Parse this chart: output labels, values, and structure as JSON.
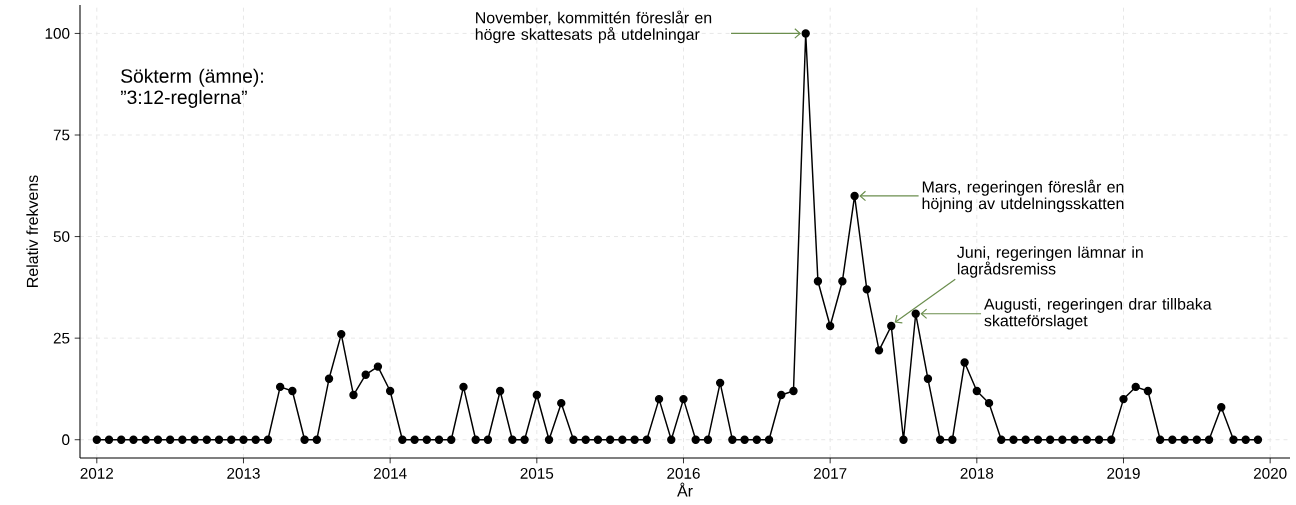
{
  "chart_data": {
    "type": "line",
    "xlabel": "År",
    "ylabel": "Relativ frekvens",
    "x": [
      "2012-01",
      "2012-02",
      "2012-03",
      "2012-04",
      "2012-05",
      "2012-06",
      "2012-07",
      "2012-08",
      "2012-09",
      "2012-10",
      "2012-11",
      "2012-12",
      "2013-01",
      "2013-02",
      "2013-03",
      "2013-04",
      "2013-05",
      "2013-06",
      "2013-07",
      "2013-08",
      "2013-09",
      "2013-10",
      "2013-11",
      "2013-12",
      "2014-01",
      "2014-02",
      "2014-03",
      "2014-04",
      "2014-05",
      "2014-06",
      "2014-07",
      "2014-08",
      "2014-09",
      "2014-10",
      "2014-11",
      "2014-12",
      "2015-01",
      "2015-02",
      "2015-03",
      "2015-04",
      "2015-05",
      "2015-06",
      "2015-07",
      "2015-08",
      "2015-09",
      "2015-10",
      "2015-11",
      "2015-12",
      "2016-01",
      "2016-02",
      "2016-03",
      "2016-04",
      "2016-05",
      "2016-06",
      "2016-07",
      "2016-08",
      "2016-09",
      "2016-10",
      "2016-11",
      "2016-12",
      "2017-01",
      "2017-02",
      "2017-03",
      "2017-04",
      "2017-05",
      "2017-06",
      "2017-07",
      "2017-08",
      "2017-09",
      "2017-10",
      "2017-11",
      "2017-12",
      "2018-01",
      "2018-02",
      "2018-03",
      "2018-04",
      "2018-05",
      "2018-06",
      "2018-07",
      "2018-08",
      "2018-09",
      "2018-10",
      "2018-11",
      "2018-12",
      "2019-01",
      "2019-02",
      "2019-03",
      "2019-04",
      "2019-05",
      "2019-06",
      "2019-07",
      "2019-08",
      "2019-09",
      "2019-10",
      "2019-11",
      "2019-12"
    ],
    "series": [
      {
        "color": "#000000",
        "values": [
          0,
          0,
          0,
          0,
          0,
          0,
          0,
          0,
          0,
          0,
          0,
          0,
          0,
          0,
          0,
          13,
          12,
          0,
          0,
          15,
          26,
          11,
          16,
          18,
          12,
          0,
          0,
          0,
          0,
          0,
          13,
          0,
          0,
          12,
          0,
          0,
          11,
          0,
          9,
          0,
          0,
          0,
          0,
          0,
          0,
          0,
          10,
          0,
          10,
          0,
          0,
          14,
          0,
          0,
          0,
          0,
          11,
          12,
          100,
          39,
          28,
          39,
          60,
          37,
          22,
          28,
          0,
          31,
          15,
          0,
          0,
          19,
          12,
          9,
          0,
          0,
          0,
          0,
          0,
          0,
          0,
          0,
          0,
          0,
          10,
          13,
          12,
          0,
          0,
          0,
          0,
          0,
          8,
          0,
          0,
          0
        ]
      }
    ],
    "xlim": [
      "2011-11-20",
      "2020-02-20"
    ],
    "xticks": [
      "2012",
      "2013",
      "2014",
      "2015",
      "2016",
      "2017",
      "2018",
      "2019",
      "2020"
    ],
    "ylim": [
      -4.5,
      107
    ],
    "yticks": [
      0,
      25,
      50,
      75,
      100
    ],
    "grid": true,
    "marker": "circle",
    "line_style": "solid",
    "annotations": [
      "Sökterm (ämne): ”3:12-reglerna”",
      {
        "text": "November, kommittén föreslår en högre skattesats på utdelningar",
        "x": "2016-11",
        "y": 100
      },
      {
        "text": "Mars, regeringen föreslår en höjning av utdelningsskatten",
        "x": "2017-03",
        "y": 60
      },
      {
        "text": "Juni, regeringen lämnar in lagrådsremiss",
        "x": "2017-06",
        "y": 28
      },
      {
        "text": "Augusti, regeringen drar tillbaka skatteförslaget",
        "x": "2017-08",
        "y": 31
      }
    ]
  }
}
